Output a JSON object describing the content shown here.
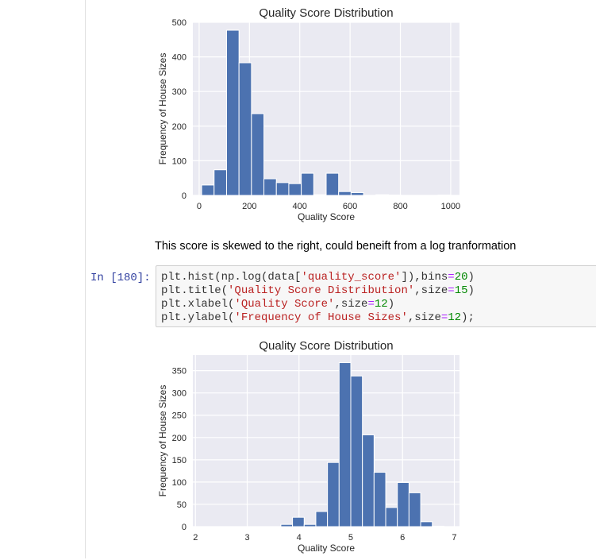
{
  "notebook": {
    "markdown_text": "This score is skewed to the right, could beneift from a log tranformation",
    "cell": {
      "prompt": "In [180]:",
      "code_lines": [
        [
          {
            "t": "plain",
            "v": "plt.hist(np.log(data["
          },
          {
            "t": "str",
            "v": "'quality_score'"
          },
          {
            "t": "plain",
            "v": "]),bins"
          },
          {
            "t": "op",
            "v": "="
          },
          {
            "t": "num",
            "v": "20"
          },
          {
            "t": "plain",
            "v": ")"
          }
        ],
        [
          {
            "t": "plain",
            "v": "plt.title("
          },
          {
            "t": "str",
            "v": "'Quality Score Distribution'"
          },
          {
            "t": "plain",
            "v": ",size"
          },
          {
            "t": "op",
            "v": "="
          },
          {
            "t": "num",
            "v": "15"
          },
          {
            "t": "plain",
            "v": ")"
          }
        ],
        [
          {
            "t": "plain",
            "v": "plt.xlabel("
          },
          {
            "t": "str",
            "v": "'Quality Score'"
          },
          {
            "t": "plain",
            "v": ",size"
          },
          {
            "t": "op",
            "v": "="
          },
          {
            "t": "num",
            "v": "12"
          },
          {
            "t": "plain",
            "v": ")"
          }
        ],
        [
          {
            "t": "plain",
            "v": "plt.ylabel("
          },
          {
            "t": "str",
            "v": "'Frequency of House Sizes'"
          },
          {
            "t": "plain",
            "v": ",size"
          },
          {
            "t": "op",
            "v": "="
          },
          {
            "t": "num",
            "v": "12"
          },
          {
            "t": "plain",
            "v": ");"
          }
        ]
      ]
    }
  },
  "colors": {
    "bar": "#4c72b0",
    "plot_bg": "#eaeaf2",
    "grid": "#ffffff",
    "code_bg": "#f7f7f7",
    "prompt": "#303f9f",
    "string": "#ba2121"
  },
  "chart_data": [
    {
      "type": "bar",
      "title": "Quality Score Distribution",
      "xlabel": "Quality Score",
      "ylabel": "Frequency of House Sizes",
      "xlim": [
        -25,
        1035
      ],
      "ylim": [
        0,
        500
      ],
      "xticks": [
        0,
        200,
        400,
        600,
        800,
        1000
      ],
      "yticks": [
        0,
        100,
        200,
        300,
        400,
        500
      ],
      "grid": true,
      "bin_edges": [
        10,
        59.5,
        109,
        158.5,
        208,
        257.5,
        307,
        356.5,
        406,
        455.5,
        505,
        554.5,
        604,
        653.5,
        703,
        752.5,
        802,
        851.5,
        901,
        950.5,
        1000
      ],
      "values": [
        30,
        74,
        477,
        383,
        236,
        48,
        37,
        34,
        64,
        2,
        64,
        11,
        8,
        0,
        2,
        1,
        0,
        0,
        0,
        1
      ]
    },
    {
      "type": "bar",
      "title": "Quality Score Distribution",
      "xlabel": "Quality Score",
      "ylabel": "Frequency of House Sizes",
      "xlim": [
        1.95,
        7.1
      ],
      "ylim": [
        0,
        385
      ],
      "xticks": [
        2,
        3,
        4,
        5,
        6,
        7
      ],
      "yticks": [
        0,
        50,
        100,
        150,
        200,
        250,
        300,
        350
      ],
      "grid": true,
      "bin_edges": [
        2.3,
        2.525,
        2.75,
        2.975,
        3.2,
        3.425,
        3.65,
        3.875,
        4.1,
        4.325,
        4.55,
        4.775,
        5.0,
        5.225,
        5.45,
        5.675,
        5.9,
        6.125,
        6.35,
        6.575,
        6.8
      ],
      "values": [
        0,
        0,
        0,
        0,
        0,
        0,
        5,
        21,
        5,
        34,
        144,
        368,
        338,
        206,
        122,
        43,
        99,
        76,
        11,
        1
      ]
    }
  ]
}
